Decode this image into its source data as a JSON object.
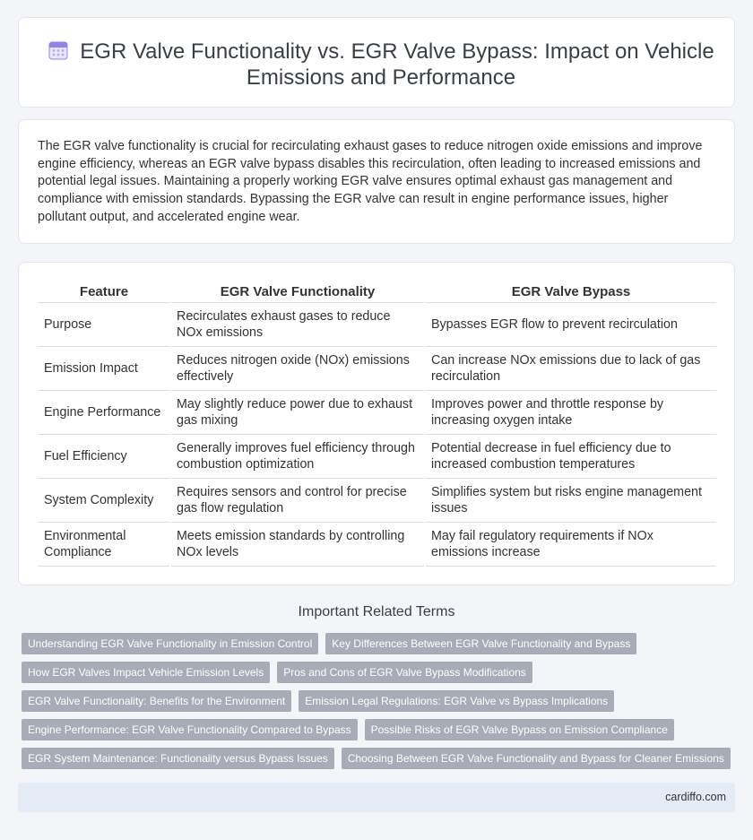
{
  "header": {
    "title": "EGR Valve Functionality vs. EGR Valve Bypass: Impact on Vehicle Emissions and Performance",
    "icon": "calendar-icon",
    "icon_color": "#7a6cf0"
  },
  "intro": {
    "text": "The EGR valve functionality is crucial for recirculating exhaust gases to reduce nitrogen oxide emissions and improve engine efficiency, whereas an EGR valve bypass disables this recirculation, often leading to increased emissions and potential legal issues. Maintaining a properly working EGR valve ensures optimal exhaust gas management and compliance with emission standards. Bypassing the EGR valve can result in engine performance issues, higher pollutant output, and accelerated engine wear."
  },
  "table": {
    "headers": [
      "Feature",
      "EGR Valve Functionality",
      "EGR Valve Bypass"
    ],
    "rows": [
      [
        "Purpose",
        "Recirculates exhaust gases to reduce NOx emissions",
        "Bypasses EGR flow to prevent recirculation"
      ],
      [
        "Emission Impact",
        "Reduces nitrogen oxide (NOx) emissions effectively",
        "Can increase NOx emissions due to lack of gas recirculation"
      ],
      [
        "Engine Performance",
        "May slightly reduce power due to exhaust gas mixing",
        "Improves power and throttle response by increasing oxygen intake"
      ],
      [
        "Fuel Efficiency",
        "Generally improves fuel efficiency through combustion optimization",
        "Potential decrease in fuel efficiency due to increased combustion temperatures"
      ],
      [
        "System Complexity",
        "Requires sensors and control for precise gas flow regulation",
        "Simplifies system but risks engine management issues"
      ],
      [
        "Environmental Compliance",
        "Meets emission standards by controlling NOx levels",
        "May fail regulatory requirements if NOx emissions increase"
      ]
    ]
  },
  "related": {
    "title": "Important Related Terms",
    "tags": [
      [
        "Understanding EGR Valve Functionality in Emission Control",
        "Key Differences Between EGR Valve Functionality and Bypass"
      ],
      [
        "How EGR Valves Impact Vehicle Emission Levels",
        "Pros and Cons of EGR Valve Bypass Modifications"
      ],
      [
        "EGR Valve Functionality: Benefits for the Environment",
        "Emission Legal Regulations: EGR Valve vs Bypass Implications"
      ],
      [
        "Engine Performance: EGR Valve Functionality Compared to Bypass",
        "Possible Risks of EGR Valve Bypass on Emission Compliance"
      ],
      [
        "EGR System Maintenance: Functionality versus Bypass Issues",
        "Choosing Between EGR Valve Functionality and Bypass for Cleaner Emissions"
      ]
    ]
  },
  "footer": {
    "site": "cardiffo.com"
  }
}
